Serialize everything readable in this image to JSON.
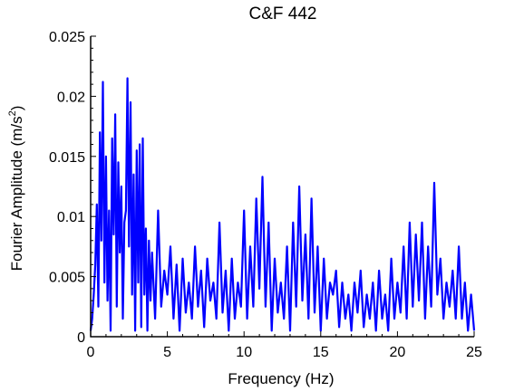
{
  "chart_data": {
    "type": "line",
    "title": "C&F 442",
    "xlabel": "Frequency (Hz)",
    "ylabel_main": "Fourier Amplitude (m/s",
    "ylabel_sup": "2",
    "ylabel_close": ")",
    "xlim": [
      0,
      25
    ],
    "ylim": [
      0,
      0.025
    ],
    "xticks": [
      0,
      5,
      10,
      15,
      20,
      25
    ],
    "xtick_labels": [
      "0",
      "5",
      "10",
      "15",
      "20",
      "25"
    ],
    "yticks": [
      0,
      0.005,
      0.01,
      0.015,
      0.02,
      0.025
    ],
    "ytick_labels": [
      "0",
      "0.005",
      "0.01",
      "0.015",
      "0.02",
      "0.025"
    ],
    "grid": false,
    "series": [
      {
        "color": "#0000ff",
        "x": [
          0.0,
          0.1,
          0.2,
          0.3,
          0.4,
          0.5,
          0.6,
          0.7,
          0.8,
          0.9,
          1.0,
          1.1,
          1.2,
          1.3,
          1.4,
          1.5,
          1.6,
          1.7,
          1.8,
          1.9,
          2.0,
          2.1,
          2.2,
          2.3,
          2.4,
          2.5,
          2.6,
          2.7,
          2.8,
          2.9,
          3.0,
          3.1,
          3.2,
          3.3,
          3.4,
          3.5,
          3.6,
          3.7,
          3.8,
          3.9,
          4.0,
          4.2,
          4.4,
          4.6,
          4.8,
          5.0,
          5.2,
          5.4,
          5.6,
          5.8,
          6.0,
          6.2,
          6.4,
          6.6,
          6.8,
          7.0,
          7.2,
          7.4,
          7.6,
          7.8,
          8.0,
          8.2,
          8.4,
          8.6,
          8.8,
          9.0,
          9.2,
          9.4,
          9.6,
          9.8,
          10.0,
          10.2,
          10.4,
          10.6,
          10.8,
          11.0,
          11.2,
          11.4,
          11.6,
          11.8,
          12.0,
          12.2,
          12.4,
          12.6,
          12.8,
          13.0,
          13.2,
          13.4,
          13.6,
          13.8,
          14.0,
          14.2,
          14.4,
          14.6,
          14.8,
          15.0,
          15.2,
          15.4,
          15.6,
          15.8,
          16.0,
          16.2,
          16.4,
          16.6,
          16.8,
          17.0,
          17.2,
          17.4,
          17.6,
          17.8,
          18.0,
          18.2,
          18.4,
          18.6,
          18.8,
          19.0,
          19.2,
          19.4,
          19.6,
          19.8,
          20.0,
          20.2,
          20.4,
          20.6,
          20.8,
          21.0,
          21.2,
          21.4,
          21.6,
          21.8,
          22.0,
          22.2,
          22.4,
          22.6,
          22.8,
          23.0,
          23.2,
          23.4,
          23.6,
          23.8,
          24.0,
          24.2,
          24.4,
          24.6,
          24.8,
          25.0
        ],
        "y": [
          0.0005,
          0.0015,
          0.0035,
          0.006,
          0.011,
          0.0025,
          0.017,
          0.008,
          0.0212,
          0.0045,
          0.015,
          0.003,
          0.0105,
          0.0005,
          0.0165,
          0.0085,
          0.0185,
          0.0025,
          0.0145,
          0.007,
          0.0125,
          0.0015,
          0.0095,
          0.0105,
          0.0215,
          0.0075,
          0.0195,
          0.0035,
          0.0135,
          0.0005,
          0.0155,
          0.0045,
          0.016,
          0.0008,
          0.0165,
          0.0035,
          0.009,
          0.0005,
          0.008,
          0.003,
          0.007,
          0.0015,
          0.0105,
          0.0025,
          0.0055,
          0.0035,
          0.0075,
          0.0015,
          0.006,
          0.0005,
          0.0065,
          0.002,
          0.0045,
          0.0015,
          0.0075,
          0.0025,
          0.0055,
          0.0008,
          0.0065,
          0.003,
          0.0045,
          0.0015,
          0.0095,
          0.002,
          0.0055,
          0.0005,
          0.0065,
          0.0015,
          0.0045,
          0.0025,
          0.0105,
          0.0015,
          0.0075,
          0.0025,
          0.0115,
          0.004,
          0.0133,
          0.0025,
          0.0095,
          0.0005,
          0.0065,
          0.002,
          0.0045,
          0.0015,
          0.0075,
          0.0005,
          0.0095,
          0.0025,
          0.0125,
          0.003,
          0.0085,
          0.0015,
          0.0115,
          0.002,
          0.0075,
          0.0005,
          0.0065,
          0.0015,
          0.0045,
          0.0035,
          0.0055,
          0.0008,
          0.0045,
          0.0015,
          0.0035,
          0.0005,
          0.0045,
          0.002,
          0.0055,
          0.0008,
          0.0035,
          0.0015,
          0.0045,
          0.0005,
          0.0055,
          0.0015,
          0.0035,
          0.0005,
          0.0065,
          0.0015,
          0.0045,
          0.002,
          0.0075,
          0.0015,
          0.0095,
          0.0025,
          0.0085,
          0.003,
          0.0095,
          0.0015,
          0.0075,
          0.0025,
          0.0128,
          0.0035,
          0.0065,
          0.0015,
          0.0045,
          0.0025,
          0.0055,
          0.0015,
          0.0075,
          0.0015,
          0.0045,
          0.0005,
          0.0035,
          0.0005
        ]
      }
    ]
  }
}
